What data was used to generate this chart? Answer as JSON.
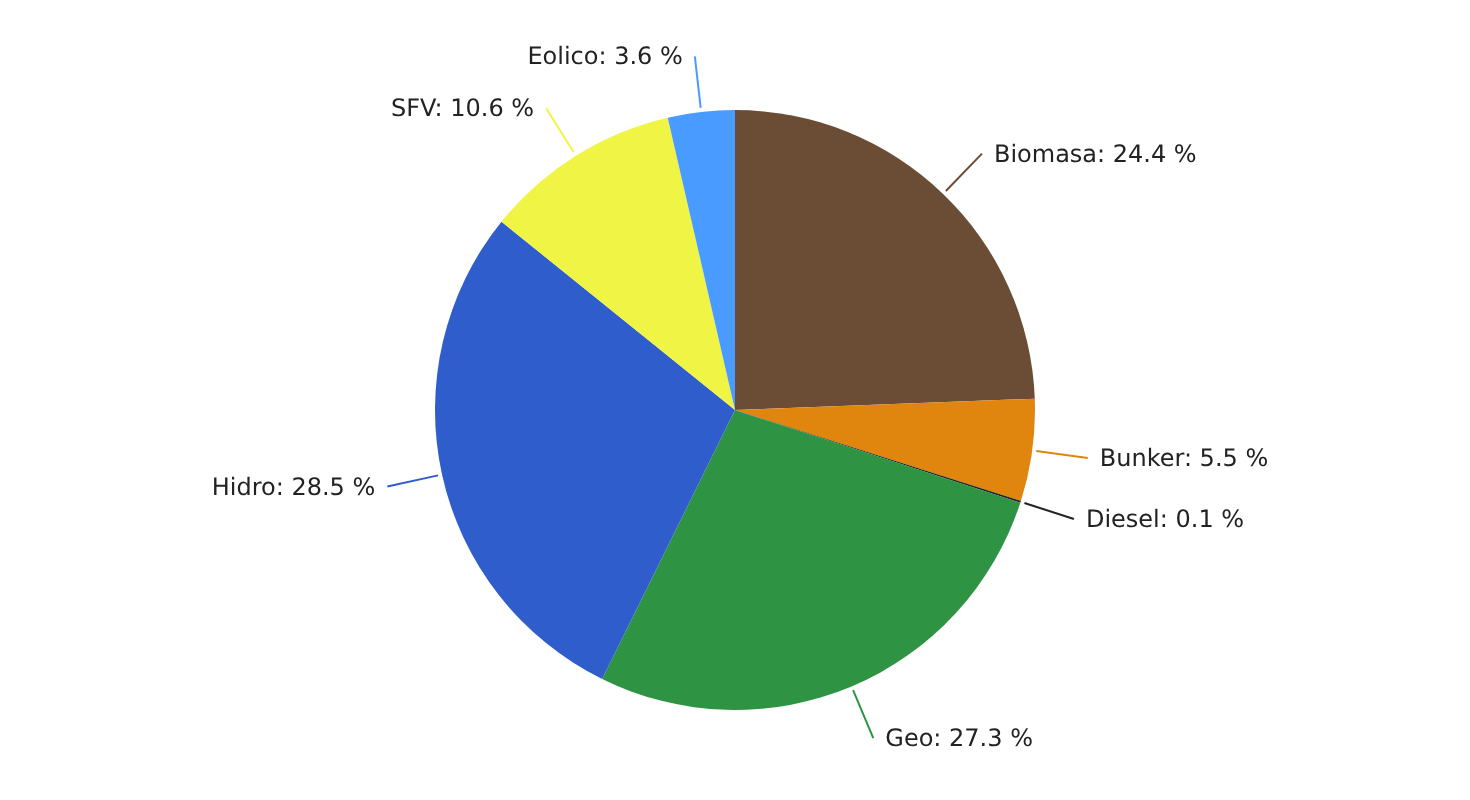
{
  "chart_data": {
    "type": "pie",
    "categories": [
      "Biomasa",
      "Bunker",
      "Diesel",
      "Geo",
      "Hidro",
      "SFV",
      "Eolico"
    ],
    "values": [
      24.4,
      5.5,
      0.1,
      27.3,
      28.5,
      10.6,
      3.6
    ],
    "value_labels": [
      "24.4 %",
      "5.5 %",
      "0.1 %",
      "27.3 %",
      "28.5 %",
      "10.6 %",
      "3.6 %"
    ],
    "colors": [
      "#6b4c35",
      "#e0860f",
      "#222222",
      "#2e9444",
      "#2f5dcb",
      "#f0f545",
      "#4a9bff"
    ],
    "legend": false
  }
}
